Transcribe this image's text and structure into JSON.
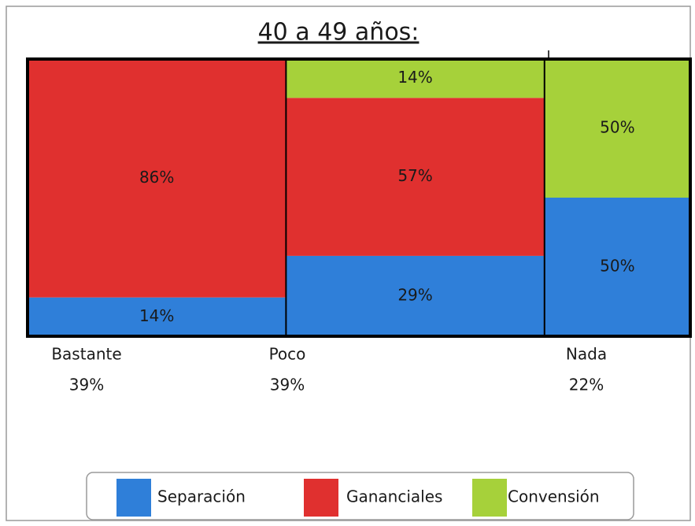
{
  "chart_data": {
    "type": "mosaic",
    "title": "40 a 49 años:",
    "categories": [
      "Bastante",
      "Poco",
      "Nada"
    ],
    "widths": [
      39,
      39,
      22
    ],
    "width_labels": [
      "39%",
      "39%",
      "22%"
    ],
    "series": [
      {
        "name": "Separación",
        "color": "#2f7fd9",
        "values": [
          14,
          29,
          50
        ],
        "value_labels": [
          "14%",
          "29%",
          "50%"
        ]
      },
      {
        "name": "Gananciales",
        "color": "#e0302f",
        "values": [
          86,
          57,
          0
        ],
        "value_labels": [
          "86%",
          "57%",
          null
        ]
      },
      {
        "name": "Convensión",
        "color": "#a6d13a",
        "values": [
          0,
          14,
          50
        ],
        "value_labels": [
          null,
          "14%",
          "50%"
        ]
      }
    ],
    "legend": "bottom"
  }
}
